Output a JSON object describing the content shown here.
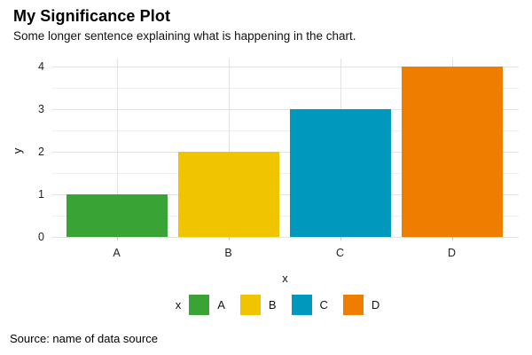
{
  "chart_data": {
    "type": "bar",
    "title": "My Significance Plot",
    "subtitle": "Some longer sentence explaining what is happening in the chart.",
    "caption": "Source: name of data source",
    "xlabel": "x",
    "ylabel": "y",
    "legend_title": "x",
    "legend_position": "bottom",
    "categories": [
      "A",
      "B",
      "C",
      "D"
    ],
    "values": [
      1,
      2,
      3,
      4
    ],
    "bar_colors": [
      "#3AA335",
      "#F1C400",
      "#0099BD",
      "#EF7D00"
    ],
    "ylim": [
      0,
      4
    ],
    "yticks": [
      0,
      1,
      2,
      3,
      4
    ],
    "minor_tick_interval": 0.5,
    "grid": "on",
    "colors": {
      "background": "#FFFFFF",
      "grid_major": "#E2E2E2",
      "grid_minor": "#EFEFEF",
      "axis_tick": "#C9C9C9",
      "text": "#111111"
    }
  }
}
